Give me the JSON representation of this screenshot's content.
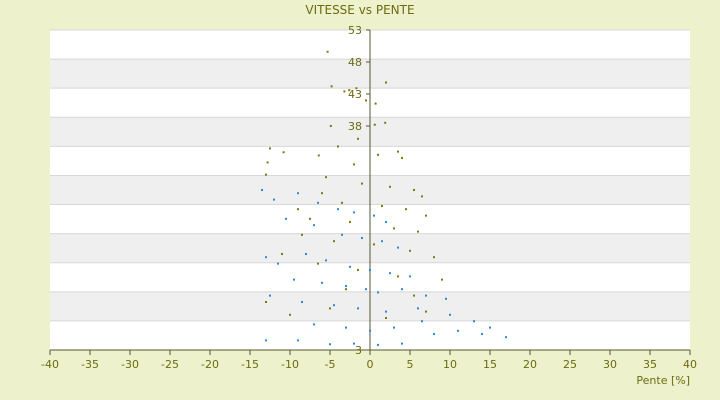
{
  "chart_data": {
    "type": "scatter",
    "title": "VITESSE vs PENTE",
    "xlabel": "Pente [%]",
    "ylabel": "",
    "xlim": [
      -40,
      40
    ],
    "ylim": [
      3,
      53
    ],
    "x_ticks": [
      -40,
      -35,
      -30,
      -25,
      -20,
      -15,
      -10,
      -5,
      0,
      5,
      10,
      15,
      20,
      25,
      30,
      35,
      40
    ],
    "y_ticks": [
      3,
      8,
      13,
      18,
      23,
      28,
      33,
      38,
      43,
      48,
      53
    ],
    "y_tick_labels_visible": [
      "3",
      "38",
      "43",
      "48",
      "53"
    ],
    "grid": "horizontal alternating bands",
    "series": [
      {
        "color": "#777a10",
        "points": [
          [
            -5.3,
            49.6
          ],
          [
            -4.8,
            44.2
          ],
          [
            -3.2,
            43.4
          ],
          [
            -2.6,
            43.6
          ],
          [
            -1.7,
            43.9
          ],
          [
            2.0,
            44.8
          ],
          [
            -0.5,
            42.0
          ],
          [
            0.7,
            41.5
          ],
          [
            -4.9,
            38.0
          ],
          [
            0.6,
            38.2
          ],
          [
            1.9,
            38.5
          ],
          [
            -1.5,
            36.0
          ],
          [
            -12.5,
            34.5
          ],
          [
            -12.8,
            32.3
          ],
          [
            -13.0,
            30.4
          ],
          [
            -10.8,
            33.9
          ],
          [
            -6.4,
            33.4
          ],
          [
            -4.0,
            34.8
          ],
          [
            -2.0,
            32.0
          ],
          [
            1.0,
            33.5
          ],
          [
            3.5,
            34.0
          ],
          [
            4.0,
            33.0
          ],
          [
            -5.5,
            30.0
          ],
          [
            -1.0,
            29.0
          ],
          [
            2.5,
            28.5
          ],
          [
            5.5,
            28.0
          ],
          [
            6.5,
            27.0
          ],
          [
            -6.0,
            27.5
          ],
          [
            -3.5,
            26.0
          ],
          [
            1.5,
            25.5
          ],
          [
            4.5,
            25.0
          ],
          [
            7.0,
            24.0
          ],
          [
            -9.0,
            25.0
          ],
          [
            -7.5,
            23.5
          ],
          [
            -2.5,
            23.0
          ],
          [
            3.0,
            22.0
          ],
          [
            6.0,
            21.5
          ],
          [
            -8.5,
            21.0
          ],
          [
            -4.5,
            20.0
          ],
          [
            0.5,
            19.5
          ],
          [
            5.0,
            18.5
          ],
          [
            8.0,
            17.5
          ],
          [
            -11.0,
            18.0
          ],
          [
            -6.5,
            16.5
          ],
          [
            -1.5,
            15.5
          ],
          [
            3.5,
            14.5
          ],
          [
            9.0,
            14.0
          ],
          [
            -13.0,
            10.5
          ],
          [
            -10.0,
            8.5
          ],
          [
            -5.0,
            9.5
          ],
          [
            2.0,
            8.0
          ],
          [
            7.0,
            9.0
          ],
          [
            -3.0,
            12.5
          ],
          [
            5.5,
            11.5
          ]
        ]
      },
      {
        "color": "#2e86d6",
        "points": [
          [
            -13.5,
            28.0
          ],
          [
            -12.0,
            26.5
          ],
          [
            -9.0,
            27.5
          ],
          [
            -6.5,
            26.0
          ],
          [
            -4.0,
            25.0
          ],
          [
            -2.0,
            24.5
          ],
          [
            0.5,
            24.0
          ],
          [
            2.0,
            23.0
          ],
          [
            -10.5,
            23.5
          ],
          [
            -7.0,
            22.5
          ],
          [
            -3.5,
            21.0
          ],
          [
            -1.0,
            20.5
          ],
          [
            1.5,
            20.0
          ],
          [
            3.5,
            19.0
          ],
          [
            -13.0,
            17.5
          ],
          [
            -11.5,
            16.5
          ],
          [
            -8.0,
            18.0
          ],
          [
            -5.5,
            17.0
          ],
          [
            -2.5,
            16.0
          ],
          [
            0.0,
            15.5
          ],
          [
            2.5,
            15.0
          ],
          [
            5.0,
            14.5
          ],
          [
            -9.5,
            14.0
          ],
          [
            -6.0,
            13.5
          ],
          [
            -3.0,
            13.0
          ],
          [
            -0.5,
            12.5
          ],
          [
            1.0,
            12.0
          ],
          [
            4.0,
            12.5
          ],
          [
            7.0,
            11.5
          ],
          [
            9.5,
            11.0
          ],
          [
            -12.5,
            11.5
          ],
          [
            -8.5,
            10.5
          ],
          [
            -4.5,
            10.0
          ],
          [
            -1.5,
            9.5
          ],
          [
            2.0,
            9.0
          ],
          [
            6.0,
            9.5
          ],
          [
            10.0,
            8.5
          ],
          [
            13.0,
            7.5
          ],
          [
            15.0,
            6.5
          ],
          [
            17.0,
            5.0
          ],
          [
            14.0,
            5.5
          ],
          [
            11.0,
            6.0
          ],
          [
            8.0,
            5.5
          ],
          [
            4.0,
            4.0
          ],
          [
            1.0,
            3.8
          ],
          [
            -2.0,
            4.0
          ],
          [
            -5.0,
            3.9
          ],
          [
            -9.0,
            4.5
          ],
          [
            -13.0,
            4.5
          ],
          [
            -7.0,
            7.0
          ],
          [
            -3.0,
            6.5
          ],
          [
            0.0,
            6.0
          ],
          [
            3.0,
            6.5
          ],
          [
            6.5,
            7.5
          ]
        ]
      }
    ]
  }
}
